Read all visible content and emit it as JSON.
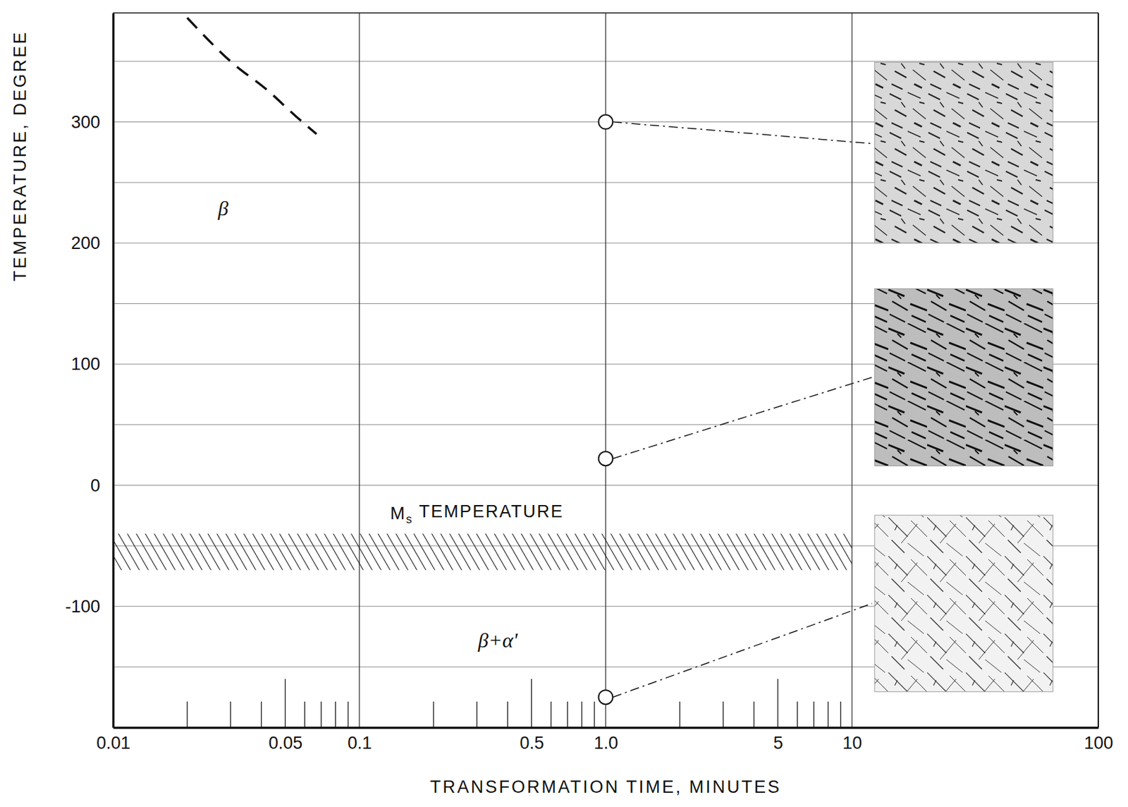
{
  "chart_data": {
    "type": "ttt_diagram",
    "x_label": "TRANSFORMATION TIME, MINUTES",
    "y_label": "TEMPERATURE, DEGREE",
    "log": "x",
    "grid": true,
    "xlim": [
      0.01,
      100
    ],
    "ylim": [
      -200,
      390
    ],
    "xticks": [
      0.01,
      0.05,
      0.1,
      0.5,
      {
        "value": 1,
        "label": "1.0"
      },
      5,
      10,
      100
    ],
    "xgrid": [
      0.1,
      1,
      10
    ],
    "xminor": [
      0.02,
      0.03,
      0.04,
      0.05,
      0.06,
      0.07,
      0.08,
      0.09,
      0.2,
      0.3,
      0.4,
      0.5,
      0.6,
      0.7,
      0.8,
      0.9,
      2,
      3,
      4,
      5,
      6,
      7,
      8,
      9
    ],
    "yticks": [
      -100,
      0,
      100,
      200,
      300
    ],
    "ygrid_minor": [
      -150,
      -50,
      50,
      150,
      250,
      350
    ],
    "curve": {
      "x": [
        0.02,
        0.03,
        0.043,
        0.055,
        0.067
      ],
      "y": [
        386,
        350,
        325,
        305,
        290
      ],
      "line_style": "dashed"
    },
    "points": {
      "x": [
        1,
        1,
        1
      ],
      "y": [
        300,
        22,
        -175
      ],
      "marker": "circle"
    },
    "ms_band": {
      "x": [
        0.01,
        10
      ],
      "y": [
        -70,
        -40
      ]
    },
    "ms_label": {
      "text": "M",
      "subscript": "s",
      "suffix": " TEMPERATURE",
      "x": 0.3,
      "y": -23
    },
    "annotations": [
      {
        "text": "β",
        "x": 0.028,
        "y": 229
      },
      {
        "text": "β+α'",
        "x": 0.365,
        "y": -128
      }
    ]
  }
}
